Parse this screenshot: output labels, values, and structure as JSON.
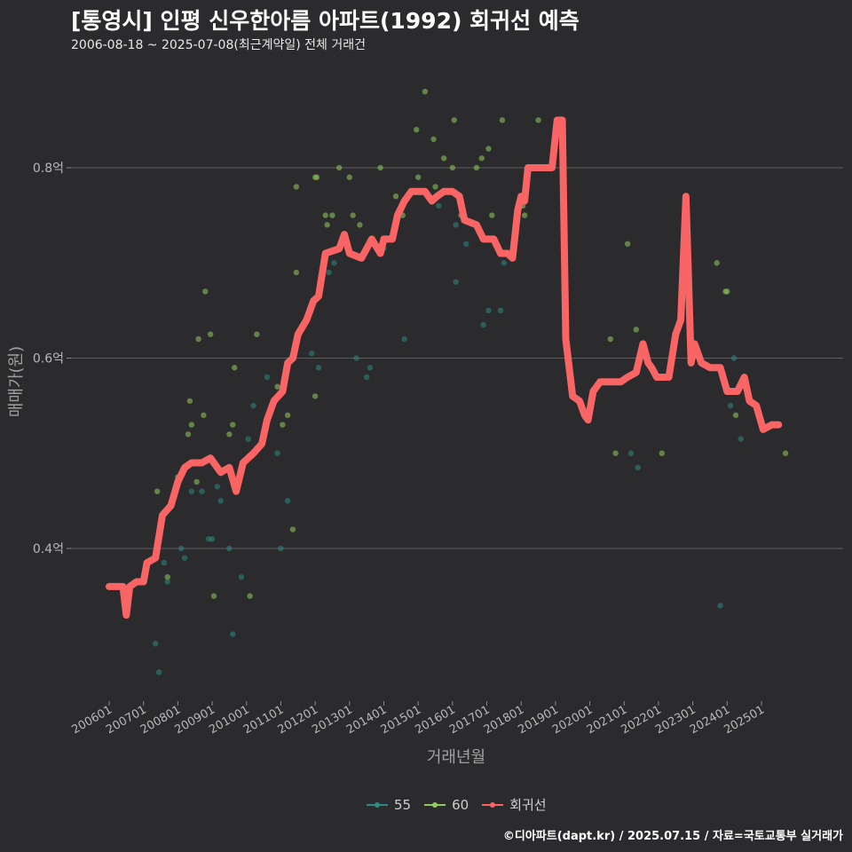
{
  "title": "[통영시] 인평 신우한아름 아파트(1992) 회귀선 예측",
  "subtitle": "2006-08-18 ~ 2025-07-08(최근계약일) 전체 거래건",
  "credit": "©디아파트(dapt.kr) / 2025.07.15 / 자료=국토교통부 실거래가",
  "chart_data": {
    "type": "scatter",
    "title": "[통영시] 인평 신우한아름 아파트(1992) 회귀선 예측",
    "xlabel": "거래년월",
    "ylabel": "매매가(원)",
    "x_range": [
      2006.0,
      2025.9
    ],
    "ylim": [
      0.24,
      0.89
    ],
    "grid": true,
    "legend_position": "bottom",
    "x_ticks": [
      {
        "value": 2006.0,
        "label": "200601"
      },
      {
        "value": 2007.0,
        "label": "200701"
      },
      {
        "value": 2008.0,
        "label": "200801"
      },
      {
        "value": 2009.0,
        "label": "200901"
      },
      {
        "value": 2010.0,
        "label": "201001"
      },
      {
        "value": 2011.0,
        "label": "201101"
      },
      {
        "value": 2012.0,
        "label": "201201"
      },
      {
        "value": 2013.0,
        "label": "201301"
      },
      {
        "value": 2014.0,
        "label": "201401"
      },
      {
        "value": 2015.0,
        "label": "201501"
      },
      {
        "value": 2016.0,
        "label": "201601"
      },
      {
        "value": 2017.0,
        "label": "201701"
      },
      {
        "value": 2018.0,
        "label": "201801"
      },
      {
        "value": 2019.0,
        "label": "201901"
      },
      {
        "value": 2020.0,
        "label": "202001"
      },
      {
        "value": 2021.0,
        "label": "202101"
      },
      {
        "value": 2022.0,
        "label": "202201"
      },
      {
        "value": 2023.0,
        "label": "202301"
      },
      {
        "value": 2024.0,
        "label": "202401"
      },
      {
        "value": 2025.0,
        "label": "202501"
      }
    ],
    "y_ticks": [
      {
        "value": 0.4,
        "label": "0.4억"
      },
      {
        "value": 0.6,
        "label": "0.6억"
      },
      {
        "value": 0.8,
        "label": "0.8억"
      }
    ],
    "series": [
      {
        "name": "55",
        "color": "#2e8b84",
        "points": [
          [
            2007.35,
            0.3
          ],
          [
            2007.45,
            0.27
          ],
          [
            2007.6,
            0.385
          ],
          [
            2007.7,
            0.365
          ],
          [
            2008.1,
            0.4
          ],
          [
            2008.2,
            0.39
          ],
          [
            2008.4,
            0.46
          ],
          [
            2008.7,
            0.46
          ],
          [
            2008.9,
            0.41
          ],
          [
            2009.0,
            0.41
          ],
          [
            2009.15,
            0.465
          ],
          [
            2009.25,
            0.45
          ],
          [
            2009.5,
            0.4
          ],
          [
            2009.6,
            0.31
          ],
          [
            2009.85,
            0.37
          ],
          [
            2010.05,
            0.515
          ],
          [
            2010.2,
            0.55
          ],
          [
            2010.6,
            0.58
          ],
          [
            2010.9,
            0.5
          ],
          [
            2011.0,
            0.4
          ],
          [
            2011.2,
            0.45
          ],
          [
            2011.9,
            0.605
          ],
          [
            2012.1,
            0.59
          ],
          [
            2012.4,
            0.69
          ],
          [
            2012.55,
            0.7
          ],
          [
            2013.2,
            0.6
          ],
          [
            2013.5,
            0.58
          ],
          [
            2013.6,
            0.59
          ],
          [
            2014.0,
            0.715
          ],
          [
            2014.6,
            0.62
          ],
          [
            2015.6,
            0.76
          ],
          [
            2016.1,
            0.68
          ],
          [
            2016.1,
            0.74
          ],
          [
            2016.4,
            0.72
          ],
          [
            2016.9,
            0.635
          ],
          [
            2017.05,
            0.65
          ],
          [
            2017.4,
            0.65
          ],
          [
            2017.5,
            0.7
          ],
          [
            2021.2,
            0.5
          ],
          [
            2021.4,
            0.485
          ],
          [
            2023.8,
            0.34
          ],
          [
            2024.1,
            0.55
          ],
          [
            2024.4,
            0.515
          ],
          [
            2024.2,
            0.6
          ]
        ]
      },
      {
        "name": "60",
        "color": "#8fce5e",
        "points": [
          [
            2007.4,
            0.46
          ],
          [
            2007.7,
            0.37
          ],
          [
            2008.0,
            0.475
          ],
          [
            2008.3,
            0.52
          ],
          [
            2008.35,
            0.555
          ],
          [
            2008.4,
            0.53
          ],
          [
            2008.55,
            0.47
          ],
          [
            2008.6,
            0.62
          ],
          [
            2008.75,
            0.54
          ],
          [
            2008.8,
            0.67
          ],
          [
            2008.95,
            0.625
          ],
          [
            2009.05,
            0.35
          ],
          [
            2009.5,
            0.52
          ],
          [
            2009.6,
            0.53
          ],
          [
            2009.65,
            0.59
          ],
          [
            2010.1,
            0.35
          ],
          [
            2010.3,
            0.625
          ],
          [
            2010.9,
            0.57
          ],
          [
            2011.05,
            0.53
          ],
          [
            2011.2,
            0.54
          ],
          [
            2011.35,
            0.42
          ],
          [
            2011.45,
            0.78
          ],
          [
            2011.45,
            0.69
          ],
          [
            2012.0,
            0.56
          ],
          [
            2012.0,
            0.79
          ],
          [
            2012.05,
            0.79
          ],
          [
            2012.3,
            0.75
          ],
          [
            2012.35,
            0.74
          ],
          [
            2012.5,
            0.75
          ],
          [
            2012.7,
            0.8
          ],
          [
            2013.0,
            0.79
          ],
          [
            2013.1,
            0.75
          ],
          [
            2013.3,
            0.74
          ],
          [
            2013.9,
            0.8
          ],
          [
            2014.35,
            0.77
          ],
          [
            2014.55,
            0.75
          ],
          [
            2014.95,
            0.84
          ],
          [
            2015.0,
            0.79
          ],
          [
            2015.2,
            0.88
          ],
          [
            2015.45,
            0.83
          ],
          [
            2015.5,
            0.78
          ],
          [
            2015.75,
            0.81
          ],
          [
            2016.0,
            0.8
          ],
          [
            2016.05,
            0.85
          ],
          [
            2016.25,
            0.75
          ],
          [
            2016.7,
            0.8
          ],
          [
            2016.85,
            0.81
          ],
          [
            2017.05,
            0.82
          ],
          [
            2017.15,
            0.75
          ],
          [
            2017.45,
            0.85
          ],
          [
            2017.65,
            0.71
          ],
          [
            2018.05,
            0.76
          ],
          [
            2018.1,
            0.75
          ],
          [
            2018.5,
            0.85
          ],
          [
            2019.3,
            0.62
          ],
          [
            2020.6,
            0.62
          ],
          [
            2020.75,
            0.5
          ],
          [
            2021.1,
            0.72
          ],
          [
            2021.35,
            0.63
          ],
          [
            2022.1,
            0.5
          ],
          [
            2023.7,
            0.7
          ],
          [
            2023.95,
            0.67
          ],
          [
            2024.0,
            0.67
          ],
          [
            2024.25,
            0.54
          ],
          [
            2025.7,
            0.5
          ]
        ]
      },
      {
        "name": "회귀선",
        "color": "#f86564",
        "points": [
          [
            2006.0,
            0.36
          ],
          [
            2006.4,
            0.36
          ],
          [
            2006.5,
            0.33
          ],
          [
            2006.6,
            0.36
          ],
          [
            2006.8,
            0.365
          ],
          [
            2007.0,
            0.365
          ],
          [
            2007.1,
            0.385
          ],
          [
            2007.35,
            0.39
          ],
          [
            2007.55,
            0.435
          ],
          [
            2007.8,
            0.445
          ],
          [
            2008.0,
            0.47
          ],
          [
            2008.2,
            0.485
          ],
          [
            2008.4,
            0.49
          ],
          [
            2008.7,
            0.49
          ],
          [
            2008.95,
            0.495
          ],
          [
            2009.25,
            0.48
          ],
          [
            2009.5,
            0.485
          ],
          [
            2009.7,
            0.46
          ],
          [
            2009.9,
            0.49
          ],
          [
            2010.2,
            0.5
          ],
          [
            2010.45,
            0.51
          ],
          [
            2010.6,
            0.535
          ],
          [
            2010.8,
            0.555
          ],
          [
            2011.05,
            0.565
          ],
          [
            2011.2,
            0.595
          ],
          [
            2011.35,
            0.6
          ],
          [
            2011.5,
            0.625
          ],
          [
            2011.75,
            0.64
          ],
          [
            2011.95,
            0.66
          ],
          [
            2012.1,
            0.665
          ],
          [
            2012.3,
            0.71
          ],
          [
            2012.7,
            0.715
          ],
          [
            2012.85,
            0.73
          ],
          [
            2013.0,
            0.71
          ],
          [
            2013.35,
            0.705
          ],
          [
            2013.5,
            0.715
          ],
          [
            2013.65,
            0.725
          ],
          [
            2013.9,
            0.71
          ],
          [
            2014.0,
            0.725
          ],
          [
            2014.25,
            0.725
          ],
          [
            2014.4,
            0.75
          ],
          [
            2014.6,
            0.765
          ],
          [
            2014.8,
            0.775
          ],
          [
            2015.0,
            0.775
          ],
          [
            2015.2,
            0.775
          ],
          [
            2015.4,
            0.765
          ],
          [
            2015.55,
            0.77
          ],
          [
            2015.75,
            0.775
          ],
          [
            2016.0,
            0.775
          ],
          [
            2016.2,
            0.77
          ],
          [
            2016.35,
            0.745
          ],
          [
            2016.7,
            0.74
          ],
          [
            2016.9,
            0.725
          ],
          [
            2017.2,
            0.725
          ],
          [
            2017.4,
            0.71
          ],
          [
            2017.6,
            0.71
          ],
          [
            2017.75,
            0.705
          ],
          [
            2017.9,
            0.755
          ],
          [
            2018.0,
            0.77
          ],
          [
            2018.1,
            0.765
          ],
          [
            2018.2,
            0.8
          ],
          [
            2018.6,
            0.8
          ],
          [
            2018.9,
            0.8
          ],
          [
            2019.05,
            0.85
          ],
          [
            2019.2,
            0.85
          ],
          [
            2019.3,
            0.62
          ],
          [
            2019.5,
            0.56
          ],
          [
            2019.7,
            0.555
          ],
          [
            2019.85,
            0.54
          ],
          [
            2019.95,
            0.535
          ],
          [
            2020.1,
            0.565
          ],
          [
            2020.3,
            0.575
          ],
          [
            2020.6,
            0.575
          ],
          [
            2020.9,
            0.575
          ],
          [
            2021.1,
            0.58
          ],
          [
            2021.35,
            0.585
          ],
          [
            2021.55,
            0.615
          ],
          [
            2021.7,
            0.595
          ],
          [
            2021.8,
            0.59
          ],
          [
            2021.95,
            0.58
          ],
          [
            2022.3,
            0.58
          ],
          [
            2022.5,
            0.625
          ],
          [
            2022.65,
            0.64
          ],
          [
            2022.8,
            0.77
          ],
          [
            2022.95,
            0.595
          ],
          [
            2023.05,
            0.615
          ],
          [
            2023.25,
            0.595
          ],
          [
            2023.5,
            0.59
          ],
          [
            2023.8,
            0.59
          ],
          [
            2024.0,
            0.565
          ],
          [
            2024.3,
            0.565
          ],
          [
            2024.5,
            0.58
          ],
          [
            2024.65,
            0.555
          ],
          [
            2024.85,
            0.55
          ],
          [
            2025.05,
            0.525
          ],
          [
            2025.3,
            0.53
          ],
          [
            2025.5,
            0.53
          ]
        ]
      }
    ]
  }
}
